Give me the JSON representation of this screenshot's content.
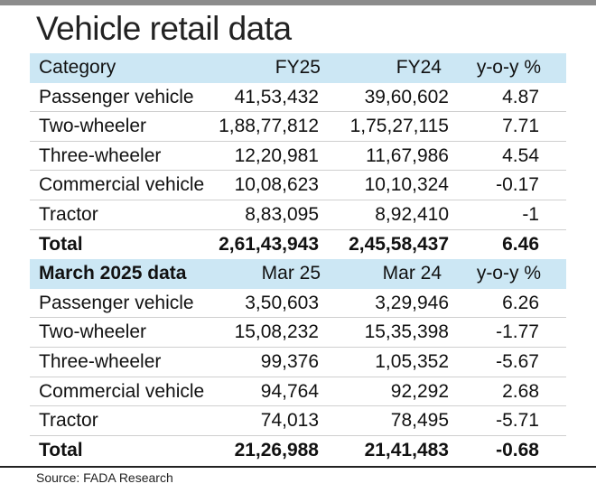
{
  "title": "Vehicle retail data",
  "annual": {
    "header": [
      "Category",
      "FY25",
      "FY24",
      "y-o-y %"
    ],
    "rows": [
      [
        "Passenger vehicle",
        "41,53,432",
        "39,60,602",
        "4.87"
      ],
      [
        "Two-wheeler",
        "1,88,77,812",
        "1,75,27,115",
        "7.71"
      ],
      [
        "Three-wheeler",
        "12,20,981",
        "11,67,986",
        "4.54"
      ],
      [
        "Commercial vehicle",
        "10,08,623",
        "10,10,324",
        "-0.17"
      ],
      [
        "Tractor",
        "8,83,095",
        "8,92,410",
        "-1"
      ]
    ],
    "total": [
      "Total",
      "2,61,43,943",
      "2,45,58,437",
      "6.46"
    ]
  },
  "monthly": {
    "header": [
      "March 2025 data",
      "Mar 25",
      "Mar 24",
      "y-o-y %"
    ],
    "rows": [
      [
        "Passenger vehicle",
        "3,50,603",
        "3,29,946",
        "6.26"
      ],
      [
        "Two-wheeler",
        "15,08,232",
        "15,35,398",
        "-1.77"
      ],
      [
        "Three-wheeler",
        "99,376",
        "1,05,352",
        "-5.67"
      ],
      [
        "Commercial vehicle",
        "94,764",
        "92,292",
        "2.68"
      ],
      [
        "Tractor",
        "74,013",
        "78,495",
        "-5.71"
      ]
    ],
    "total": [
      "Total",
      "21,26,988",
      "21,41,483",
      "-0.68"
    ]
  },
  "source": "Source: FADA Research",
  "colors": {
    "header_bg": "#cce7f4",
    "text": "#111111",
    "rule": "#222222"
  }
}
